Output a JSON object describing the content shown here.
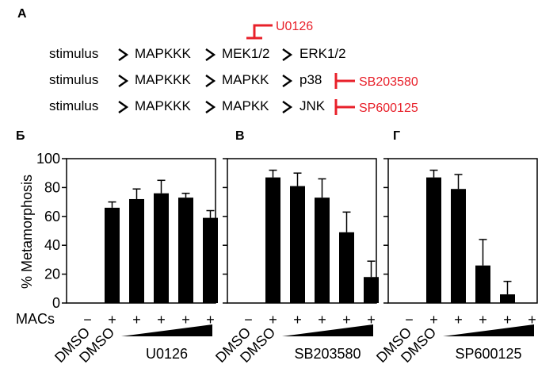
{
  "panel_a": {
    "label": "A",
    "rows": [
      {
        "steps": [
          "stimulus",
          "MAPKKK",
          "MEK1/2",
          "ERK1/2"
        ],
        "inhibitor": "U0126"
      },
      {
        "steps": [
          "stimulus",
          "MAPKKK",
          "MAPKK",
          "p38"
        ],
        "inhibitor": "SB203580"
      },
      {
        "steps": [
          "stimulus",
          "MAPKKK",
          "MAPKK",
          "JNK"
        ],
        "inhibitor": "SP600125"
      }
    ]
  },
  "colors": {
    "inhibitor": "#e8202a",
    "bar": "#000000",
    "text": "#000000"
  },
  "shared": {
    "ylabel": "% Metamorphosis",
    "macs_label": "MACs",
    "macs_values": [
      "−",
      "+",
      "+",
      "+",
      "+",
      "+"
    ],
    "dmso_labels": [
      "DMSO",
      "DMSO"
    ],
    "yticks": [
      0,
      20,
      40,
      60,
      80,
      100
    ]
  },
  "chart_data": [
    {
      "type": "bar",
      "panel_label": "Б",
      "drug": "U0126",
      "ylabel": "% Metamorphosis",
      "ylim": [
        0,
        100
      ],
      "categories": [
        "DMSO, −MACs",
        "DMSO, +MACs",
        "U0126 dose 1",
        "U0126 dose 2",
        "U0126 dose 3",
        "U0126 dose 4"
      ],
      "values": [
        0,
        66,
        72,
        76,
        73,
        59
      ],
      "errors": [
        0,
        4,
        7,
        9,
        3,
        5
      ]
    },
    {
      "type": "bar",
      "panel_label": "В",
      "drug": "SB203580",
      "ylabel": "% Metamorphosis",
      "ylim": [
        0,
        100
      ],
      "categories": [
        "DMSO, −MACs",
        "DMSO, +MACs",
        "SB203580 dose 1",
        "SB203580 dose 2",
        "SB203580 dose 3",
        "SB203580 dose 4"
      ],
      "values": [
        0,
        87,
        81,
        73,
        49,
        18
      ],
      "errors": [
        0,
        5,
        9,
        13,
        14,
        11
      ]
    },
    {
      "type": "bar",
      "panel_label": "Г",
      "drug": "SP600125",
      "ylabel": "% Metamorphosis",
      "ylim": [
        0,
        100
      ],
      "categories": [
        "DMSO, −MACs",
        "DMSO, +MACs",
        "SP600125 dose 1",
        "SP600125 dose 2",
        "SP600125 dose 3",
        "SP600125 dose 4"
      ],
      "values": [
        0,
        87,
        79,
        26,
        6,
        0
      ],
      "errors": [
        0,
        5,
        10,
        18,
        9,
        0
      ]
    }
  ]
}
